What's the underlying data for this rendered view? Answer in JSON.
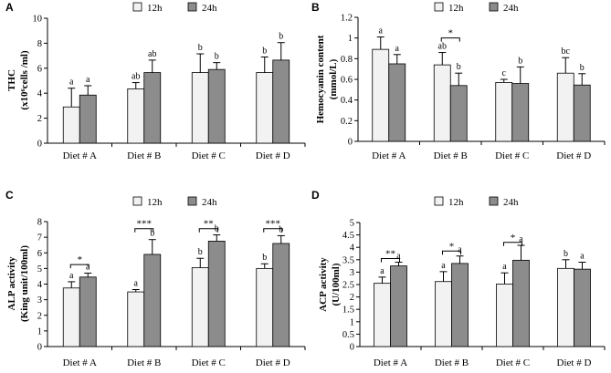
{
  "colors": {
    "series_12h": "#f2f2f2",
    "series_24h": "#8c8c8c",
    "stroke": "#000000"
  },
  "chart_data": [
    {
      "panel": "A",
      "type": "bar",
      "ylabel": [
        "THC",
        "(x10⁶cells /ml)"
      ],
      "categories": [
        "Diet # A",
        "Diet # B",
        "Diet # C",
        "Diet # D"
      ],
      "ylim": [
        0,
        10
      ],
      "yticks": [
        "0",
        "2",
        "4",
        "6",
        "8",
        "10"
      ],
      "ytick_values": [
        0,
        2,
        4,
        6,
        8,
        10
      ],
      "legend": [
        "12h",
        "24h"
      ],
      "series": [
        {
          "name": "12h",
          "values": [
            2.9,
            4.35,
            5.65,
            5.65
          ],
          "errors": [
            1.5,
            0.5,
            1.5,
            1.25
          ],
          "labels": [
            "a",
            "ab",
            "b",
            "b"
          ]
        },
        {
          "name": "24h",
          "values": [
            3.85,
            5.65,
            5.9,
            6.65
          ],
          "errors": [
            0.75,
            1.0,
            0.55,
            1.4
          ],
          "labels": [
            "a",
            "ab",
            "b",
            "b"
          ]
        }
      ],
      "significance": []
    },
    {
      "panel": "B",
      "type": "bar",
      "ylabel": [
        "Hemocyanin  content",
        "(mmol/L)"
      ],
      "categories": [
        "Diet # A",
        "Diet # B",
        "Diet # C",
        "Diet # D"
      ],
      "ylim": [
        0,
        1.2
      ],
      "yticks": [
        "0",
        "0.2",
        "0.4",
        "0.6",
        "0.8",
        "1",
        "1.2"
      ],
      "ytick_values": [
        0,
        0.2,
        0.4,
        0.6,
        0.8,
        1.0,
        1.2
      ],
      "legend": [
        "12h",
        "24h"
      ],
      "series": [
        {
          "name": "12h",
          "values": [
            0.89,
            0.74,
            0.57,
            0.66
          ],
          "errors": [
            0.12,
            0.12,
            0.03,
            0.15
          ],
          "labels": [
            "a",
            "ab",
            "c",
            "bc"
          ]
        },
        {
          "name": "24h",
          "values": [
            0.75,
            0.54,
            0.56,
            0.545
          ],
          "errors": [
            0.09,
            0.12,
            0.16,
            0.11
          ],
          "labels": [
            "a",
            "b",
            "b",
            "b"
          ]
        }
      ],
      "significance": [
        {
          "category": 1,
          "text": "*",
          "y": 1.0
        }
      ]
    },
    {
      "panel": "C",
      "type": "bar",
      "ylabel": [
        "ALP activity",
        "(King unit/100ml)"
      ],
      "categories": [
        "Diet # A",
        "Diet # B",
        "Diet # C",
        "Diet # D"
      ],
      "ylim": [
        0,
        8
      ],
      "yticks": [
        "0",
        "1",
        "2",
        "3",
        "4",
        "5",
        "6",
        "7",
        "8"
      ],
      "ytick_values": [
        0,
        1,
        2,
        3,
        4,
        5,
        6,
        7,
        8
      ],
      "legend": [
        "12h",
        "24h"
      ],
      "series": [
        {
          "name": "12h",
          "values": [
            3.75,
            3.5,
            5.05,
            5.0
          ],
          "errors": [
            0.4,
            0.15,
            0.6,
            0.3
          ],
          "labels": [
            "a",
            "a",
            "b",
            "b"
          ]
        },
        {
          "name": "24h",
          "values": [
            4.45,
            5.9,
            6.75,
            6.6
          ],
          "errors": [
            0.25,
            0.95,
            0.4,
            0.5
          ],
          "labels": [
            "a",
            "b",
            "b",
            "b"
          ]
        }
      ],
      "significance": [
        {
          "category": 0,
          "text": "*",
          "y": 5.25
        },
        {
          "category": 1,
          "text": "***",
          "y": 7.55
        },
        {
          "category": 2,
          "text": "**",
          "y": 7.55
        },
        {
          "category": 3,
          "text": "***",
          "y": 7.55
        }
      ]
    },
    {
      "panel": "D",
      "type": "bar",
      "ylabel": [
        "ACP activity",
        "(U/100ml)"
      ],
      "categories": [
        "Diet # A",
        "Diet # B",
        "Diet # C",
        "Diet # D"
      ],
      "ylim": [
        0,
        5
      ],
      "yticks": [
        "0",
        "0.5",
        "1",
        "1.5",
        "2",
        "2.5",
        "3",
        "3.5",
        "4",
        "4.5",
        "5"
      ],
      "ytick_values": [
        0,
        0.5,
        1,
        1.5,
        2,
        2.5,
        3,
        3.5,
        4,
        4.5,
        5
      ],
      "legend": [
        "12h",
        "24h"
      ],
      "series": [
        {
          "name": "12h",
          "values": [
            2.55,
            2.62,
            2.52,
            3.15
          ],
          "errors": [
            0.25,
            0.4,
            0.45,
            0.35
          ],
          "labels": [
            "a",
            "a",
            "a",
            "b"
          ]
        },
        {
          "name": "24h",
          "values": [
            3.25,
            3.35,
            3.48,
            3.12
          ],
          "errors": [
            0.15,
            0.3,
            0.6,
            0.28
          ],
          "labels": [
            "a",
            "a",
            "a",
            "a"
          ]
        }
      ],
      "significance": [
        {
          "category": 0,
          "text": "**",
          "y": 3.55
        },
        {
          "category": 1,
          "text": "*",
          "y": 3.85
        },
        {
          "category": 2,
          "text": "*",
          "y": 4.2
        }
      ]
    }
  ]
}
